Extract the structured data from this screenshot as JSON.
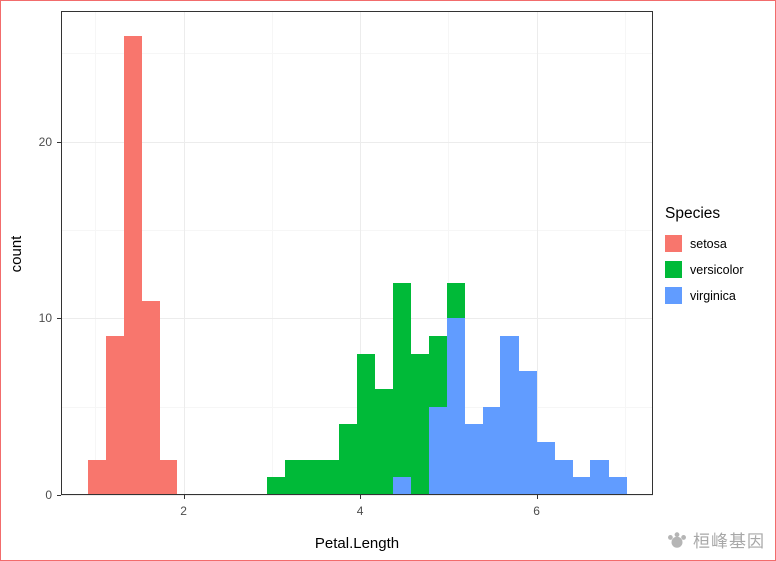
{
  "axes": {
    "x_title": "Petal.Length",
    "y_title": "count",
    "x_tick_labels": [
      "2",
      "4",
      "6"
    ],
    "y_tick_labels": [
      "0",
      "10",
      "20"
    ]
  },
  "legend": {
    "title": "Species",
    "items": [
      {
        "label": "setosa",
        "color": "#F8766D"
      },
      {
        "label": "versicolor",
        "color": "#00BA38"
      },
      {
        "label": "virginica",
        "color": "#619CFF"
      }
    ]
  },
  "watermark": {
    "text": "桓峰基因",
    "color": "#a8a8a8"
  },
  "chart_data": {
    "type": "bar",
    "subtype": "stacked_histogram",
    "title": "",
    "xlabel": "Petal.Length",
    "ylabel": "count",
    "xlim": [
      0.61,
      7.32
    ],
    "ylim": [
      0,
      27.4
    ],
    "x_ticks": [
      2,
      4,
      6
    ],
    "y_ticks": [
      0,
      10,
      20
    ],
    "x_minor": [
      1,
      3,
      5,
      7
    ],
    "y_minor": [
      5,
      15,
      25
    ],
    "grid": true,
    "legend_position": "right",
    "binwidth": 0.2034,
    "stack_order_bottom_to_top": [
      "virginica",
      "versicolor",
      "setosa"
    ],
    "series_colors": {
      "setosa": "#F8766D",
      "versicolor": "#00BA38",
      "virginica": "#619CFF"
    },
    "bins": [
      {
        "x0": 0.92,
        "x1": 1.12,
        "setosa": 2,
        "versicolor": 0,
        "virginica": 0
      },
      {
        "x0": 1.12,
        "x1": 1.32,
        "setosa": 9,
        "versicolor": 0,
        "virginica": 0
      },
      {
        "x0": 1.32,
        "x1": 1.53,
        "setosa": 26,
        "versicolor": 0,
        "virginica": 0
      },
      {
        "x0": 1.53,
        "x1": 1.73,
        "setosa": 11,
        "versicolor": 0,
        "virginica": 0
      },
      {
        "x0": 1.73,
        "x1": 1.93,
        "setosa": 2,
        "versicolor": 0,
        "virginica": 0
      },
      {
        "x0": 2.95,
        "x1": 3.15,
        "setosa": 0,
        "versicolor": 1,
        "virginica": 0
      },
      {
        "x0": 3.15,
        "x1": 3.36,
        "setosa": 0,
        "versicolor": 2,
        "virginica": 0
      },
      {
        "x0": 3.36,
        "x1": 3.56,
        "setosa": 0,
        "versicolor": 2,
        "virginica": 0
      },
      {
        "x0": 3.56,
        "x1": 3.76,
        "setosa": 0,
        "versicolor": 2,
        "virginica": 0
      },
      {
        "x0": 3.76,
        "x1": 3.97,
        "setosa": 0,
        "versicolor": 4,
        "virginica": 0
      },
      {
        "x0": 3.97,
        "x1": 4.17,
        "setosa": 0,
        "versicolor": 8,
        "virginica": 0
      },
      {
        "x0": 4.17,
        "x1": 4.37,
        "setosa": 0,
        "versicolor": 6,
        "virginica": 0
      },
      {
        "x0": 4.37,
        "x1": 4.58,
        "setosa": 0,
        "versicolor": 11,
        "virginica": 1
      },
      {
        "x0": 4.58,
        "x1": 4.78,
        "setosa": 0,
        "versicolor": 8,
        "virginica": 0
      },
      {
        "x0": 4.78,
        "x1": 4.98,
        "setosa": 0,
        "versicolor": 4,
        "virginica": 5
      },
      {
        "x0": 4.98,
        "x1": 5.19,
        "setosa": 0,
        "versicolor": 2,
        "virginica": 10
      },
      {
        "x0": 5.19,
        "x1": 5.39,
        "setosa": 0,
        "versicolor": 0,
        "virginica": 4
      },
      {
        "x0": 5.39,
        "x1": 5.59,
        "setosa": 0,
        "versicolor": 0,
        "virginica": 5
      },
      {
        "x0": 5.59,
        "x1": 5.8,
        "setosa": 0,
        "versicolor": 0,
        "virginica": 9
      },
      {
        "x0": 5.8,
        "x1": 6.0,
        "setosa": 0,
        "versicolor": 0,
        "virginica": 7
      },
      {
        "x0": 6.0,
        "x1": 6.21,
        "setosa": 0,
        "versicolor": 0,
        "virginica": 3
      },
      {
        "x0": 6.21,
        "x1": 6.41,
        "setosa": 0,
        "versicolor": 0,
        "virginica": 2
      },
      {
        "x0": 6.41,
        "x1": 6.61,
        "setosa": 0,
        "versicolor": 0,
        "virginica": 1
      },
      {
        "x0": 6.61,
        "x1": 6.82,
        "setosa": 0,
        "versicolor": 0,
        "virginica": 2
      },
      {
        "x0": 6.82,
        "x1": 7.02,
        "setosa": 0,
        "versicolor": 0,
        "virginica": 1
      }
    ]
  }
}
